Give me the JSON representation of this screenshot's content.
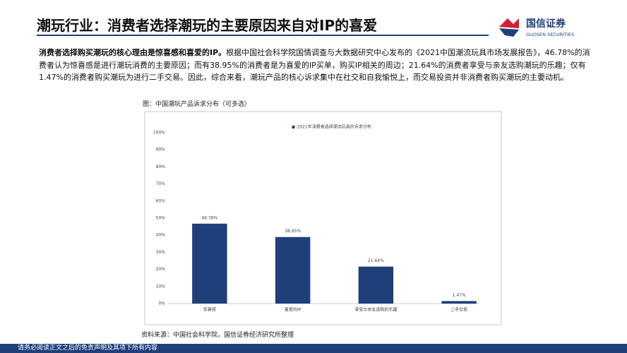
{
  "header": {
    "title": "潮玩行业：消费者选择潮玩的主要原因来自对IP的喜爱",
    "logo_name": "国信证券",
    "logo_english": "GUOSEN SECURITIES"
  },
  "body": {
    "lead": "消费者选择购买潮玩的核心理由是惊喜感和喜爱的IP。",
    "text": "根据中国社会科学院国情调查与大数据研究中心发布的《2021中国潮流玩具市场发展报告》，46.78%的消费者认为惊喜感是进行潮玩消费的主要原因；而有38.95%的消费者是为喜爱的IP买单，购买IP相关的周边；21.64%的消费者享受与亲友选购潮玩的乐趣；仅有1.47%的消费者购买潮玩为进行二手交易。因此，综合来看，潮玩产品的核心诉求集中在社交和自我愉悦上，而交易投资并非消费者购买潮玩的主要动机。"
  },
  "figure_caption": "图：中国潮玩产品诉求分布（可多选）",
  "chart_data": {
    "type": "bar",
    "categories": [
      "惊喜感",
      "喜爱的IP",
      "享受与亲友选购的乐趣",
      "二手交易"
    ],
    "series": [
      {
        "name": "2021年消费者选择潮流玩具的诉求分布",
        "color": "#1f3f7a",
        "values": [
          46.78,
          38.95,
          21.64,
          1.47
        ],
        "value_labels": [
          "46.78%",
          "38.95%",
          "21.64%",
          "1.47%"
        ]
      }
    ],
    "ylim": [
      0,
      100
    ],
    "yticks": [
      {
        "value": 0,
        "label": "0%"
      },
      {
        "value": 10,
        "label": "10%"
      },
      {
        "value": 20,
        "label": "20%"
      },
      {
        "value": 30,
        "label": "30%"
      },
      {
        "value": 40,
        "label": "40%"
      },
      {
        "value": 50,
        "label": "50%"
      },
      {
        "value": 60,
        "label": "60%"
      },
      {
        "value": 70,
        "label": "70%"
      },
      {
        "value": 80,
        "label": "80%"
      },
      {
        "value": 90,
        "label": "90%"
      },
      {
        "value": 100,
        "label": "100%"
      }
    ],
    "grid": false,
    "legend": "top"
  },
  "source": "资料来源：中国社会科学院，国信证券经济研究所整理",
  "footer": "请务必阅读正文之后的免责声明及其项下所有内容"
}
